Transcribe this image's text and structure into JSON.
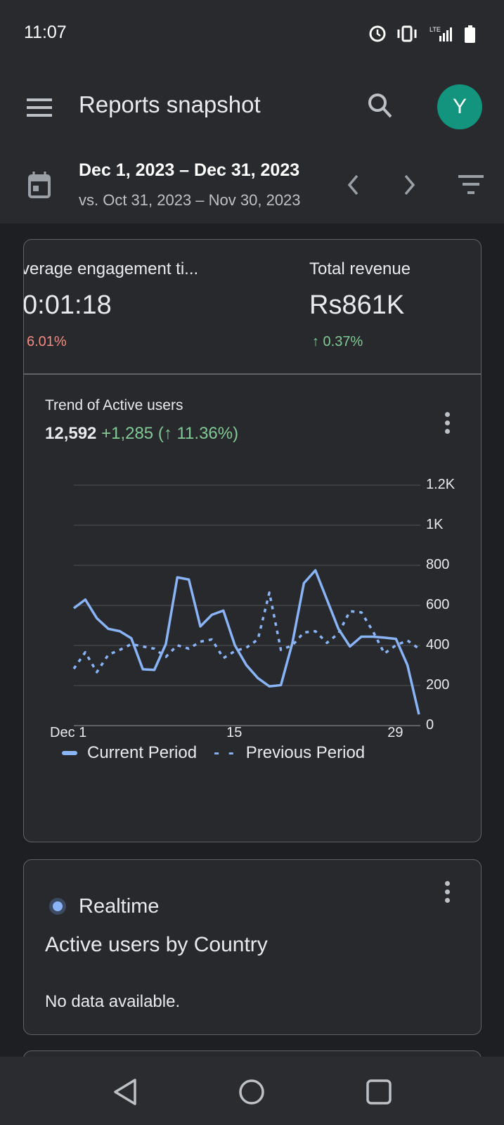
{
  "status_bar": {
    "time": "11:07",
    "icons": [
      "alarm-icon",
      "vibrate-icon",
      "lte-signal-icon",
      "battery-icon"
    ]
  },
  "app_bar": {
    "title": "Reports snapshot",
    "avatar_letter": "Y",
    "avatar_color": "#12947f"
  },
  "date_range": {
    "current": "Dec 1, 2023 – Dec 31, 2023",
    "comparison": "vs. Oct 31, 2023 – Nov 30, 2023"
  },
  "metrics": [
    {
      "label": "verage engagement ti...",
      "value": "0:01:18",
      "change": "6.01%",
      "direction": "down"
    },
    {
      "label": "Total revenue",
      "value": "Rs861K",
      "change": "↑ 0.37%",
      "direction": "up"
    }
  ],
  "trend_card": {
    "title": "Trend of Active users",
    "total": "12,592",
    "delta": "+1,285 (↑ 11.36%)"
  },
  "chart_data": {
    "type": "line",
    "title": "Trend of Active users",
    "x": [
      1,
      2,
      3,
      4,
      5,
      6,
      7,
      8,
      9,
      10,
      11,
      12,
      13,
      14,
      15,
      16,
      17,
      18,
      19,
      20,
      21,
      22,
      23,
      24,
      25,
      26,
      27,
      28,
      29,
      30,
      31
    ],
    "xtick_labels": [
      "Dec 1",
      "15",
      "29"
    ],
    "ytick_labels": [
      "0",
      "200",
      "400",
      "600",
      "800",
      "1K",
      "1.2K"
    ],
    "ylim": [
      0,
      1200
    ],
    "grid": true,
    "legend_placement": "bottom",
    "series": [
      {
        "name": "Current Period",
        "style": "solid",
        "color": "#8ab4f8",
        "values": [
          586,
          629,
          536,
          483,
          471,
          436,
          281,
          278,
          407,
          740,
          729,
          495,
          553,
          574,
          401,
          302,
          237,
          196,
          202,
          413,
          711,
          775,
          629,
          483,
          395,
          444,
          444,
          439,
          433,
          302,
          56
        ]
      },
      {
        "name": "Previous Period",
        "style": "dotted",
        "color": "#8ab4f8",
        "values": [
          284,
          366,
          267,
          354,
          378,
          407,
          395,
          384,
          343,
          401,
          384,
          419,
          430,
          337,
          372,
          389,
          430,
          664,
          378,
          401,
          465,
          471,
          413,
          460,
          571,
          565,
          471,
          360,
          401,
          425,
          384
        ]
      }
    ]
  },
  "realtime_card": {
    "badge": "Realtime",
    "title": "Active users by Country",
    "empty": "No data available."
  }
}
